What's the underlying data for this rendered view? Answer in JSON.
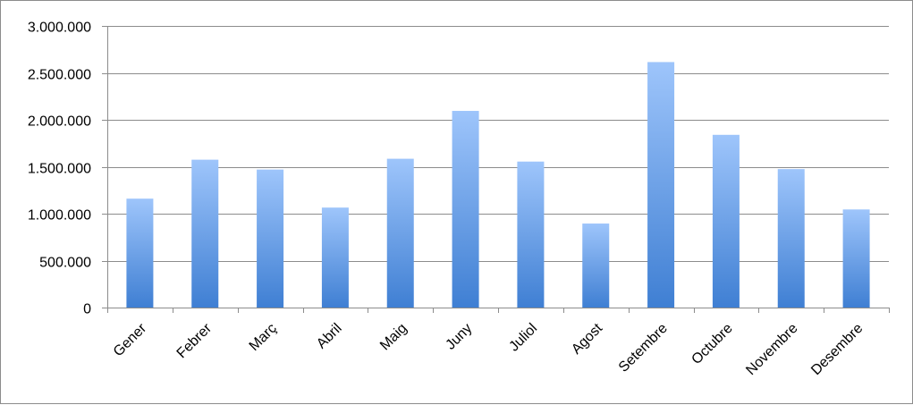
{
  "chart_data": {
    "type": "bar",
    "categories": [
      "Gener",
      "Febrer",
      "Març",
      "Abril",
      "Maig",
      "Juny",
      "Juliol",
      "Agost",
      "Setembre",
      "Octubre",
      "Novembre",
      "Desembre"
    ],
    "values": [
      1160000,
      1575000,
      1470000,
      1065000,
      1585000,
      2095000,
      1555000,
      895000,
      2615000,
      1840000,
      1475000,
      1045000
    ],
    "yticks": [
      0,
      500000,
      1000000,
      1500000,
      2000000,
      2500000,
      3000000
    ],
    "ytick_labels": [
      "0",
      "500.000",
      "1.000.000",
      "1.500.000",
      "2.000.000",
      "2.500.000",
      "3.000.000"
    ],
    "ylim": [
      0,
      3000000
    ],
    "grid": true,
    "legend": "none",
    "colors": {
      "bar_top": "#9ec5fb",
      "bar_bottom": "#3f7fd3",
      "grid": "#8c8c8c",
      "axis": "#8c8c8c"
    }
  }
}
